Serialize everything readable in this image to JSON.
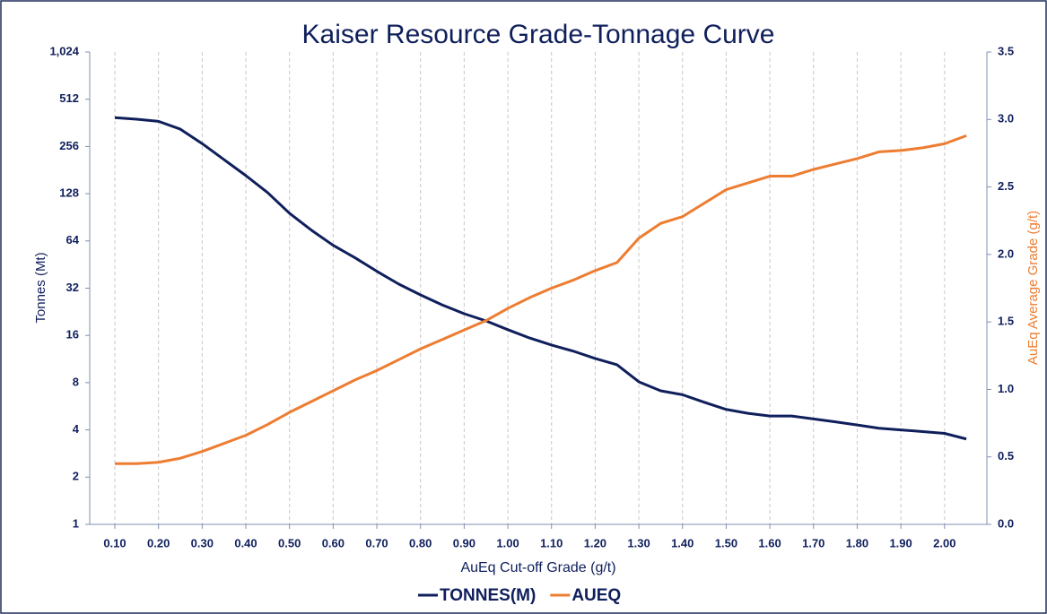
{
  "chart_data": {
    "type": "line",
    "title": "Kaiser Resource Grade-Tonnage Curve",
    "x_label": "AuEq Cut-off Grade (g/t)",
    "y_label": "Tonnes (Mt)",
    "y2_label": "AuEq Average Grade (g/t)",
    "x": [
      0.1,
      0.15,
      0.2,
      0.25,
      0.3,
      0.35,
      0.4,
      0.45,
      0.5,
      0.55,
      0.6,
      0.65,
      0.7,
      0.75,
      0.8,
      0.85,
      0.9,
      0.95,
      1.0,
      1.05,
      1.1,
      1.15,
      1.2,
      1.25,
      1.3,
      1.35,
      1.4,
      1.45,
      1.5,
      1.55,
      1.6,
      1.65,
      1.7,
      1.75,
      1.8,
      1.85,
      1.9,
      1.95,
      2.0,
      2.05
    ],
    "series": [
      {
        "name": "TONNES(M)",
        "color": "#0f1f5c",
        "axis": "y",
        "values": [
          391,
          382,
          370,
          330,
          267,
          211,
          167,
          130,
          96,
          75,
          60,
          50,
          41,
          34,
          29,
          25,
          22,
          19.8,
          17.4,
          15.4,
          13.9,
          12.7,
          11.4,
          10.4,
          8.1,
          7.1,
          6.7,
          6.0,
          5.4,
          5.1,
          4.9,
          4.9,
          4.7,
          4.5,
          4.3,
          4.1,
          4.0,
          3.9,
          3.8,
          3.5
        ]
      },
      {
        "name": "AUEQ",
        "color": "#ed7d31",
        "axis": "y2",
        "values": [
          0.45,
          0.45,
          0.46,
          0.49,
          0.54,
          0.6,
          0.66,
          0.74,
          0.83,
          0.91,
          0.99,
          1.07,
          1.14,
          1.22,
          1.3,
          1.37,
          1.44,
          1.51,
          1.6,
          1.68,
          1.75,
          1.81,
          1.88,
          1.94,
          2.12,
          2.23,
          2.28,
          2.38,
          2.48,
          2.53,
          2.58,
          2.58,
          2.63,
          2.67,
          2.71,
          2.76,
          2.77,
          2.79,
          2.82,
          2.88
        ]
      }
    ],
    "xlim": [
      0.0425,
      2.097
    ],
    "xticks": [
      {
        "value": 0.1,
        "label": "0.10"
      },
      {
        "value": 0.2,
        "label": "0.20"
      },
      {
        "value": 0.3,
        "label": "0.30"
      },
      {
        "value": 0.4,
        "label": "0.40"
      },
      {
        "value": 0.5,
        "label": "0.50"
      },
      {
        "value": 0.6,
        "label": "0.60"
      },
      {
        "value": 0.7,
        "label": "0.70"
      },
      {
        "value": 0.8,
        "label": "0.80"
      },
      {
        "value": 0.9,
        "label": "0.90"
      },
      {
        "value": 1.0,
        "label": "1.00"
      },
      {
        "value": 1.1,
        "label": "1.10"
      },
      {
        "value": 1.2,
        "label": "1.20"
      },
      {
        "value": 1.3,
        "label": "1.30"
      },
      {
        "value": 1.4,
        "label": "1.40"
      },
      {
        "value": 1.5,
        "label": "1.50"
      },
      {
        "value": 1.6,
        "label": "1.60"
      },
      {
        "value": 1.7,
        "label": "1.70"
      },
      {
        "value": 1.8,
        "label": "1.80"
      },
      {
        "value": 1.9,
        "label": "1.90"
      },
      {
        "value": 2.0,
        "label": "2.00"
      }
    ],
    "ylim": [
      1,
      1024
    ],
    "yscale": "log",
    "yticks": [
      1,
      2,
      4,
      8,
      16,
      32,
      64,
      128,
      256,
      512,
      {
        "value": 1024,
        "label": "1,024"
      }
    ],
    "y2lim": [
      0,
      3.5
    ],
    "y2ticks": [
      {
        "value": 0,
        "label": "0.0"
      },
      {
        "value": 0.5,
        "label": "0.5"
      },
      {
        "value": 1,
        "label": "1.0"
      },
      {
        "value": 1.5,
        "label": "1.5"
      },
      {
        "value": 2,
        "label": "2.0"
      },
      {
        "value": 2.5,
        "label": "2.5"
      },
      {
        "value": 3,
        "label": "3.0"
      },
      {
        "value": 3.5,
        "label": "3.5"
      }
    ],
    "grid": true,
    "legend": "bottom"
  }
}
